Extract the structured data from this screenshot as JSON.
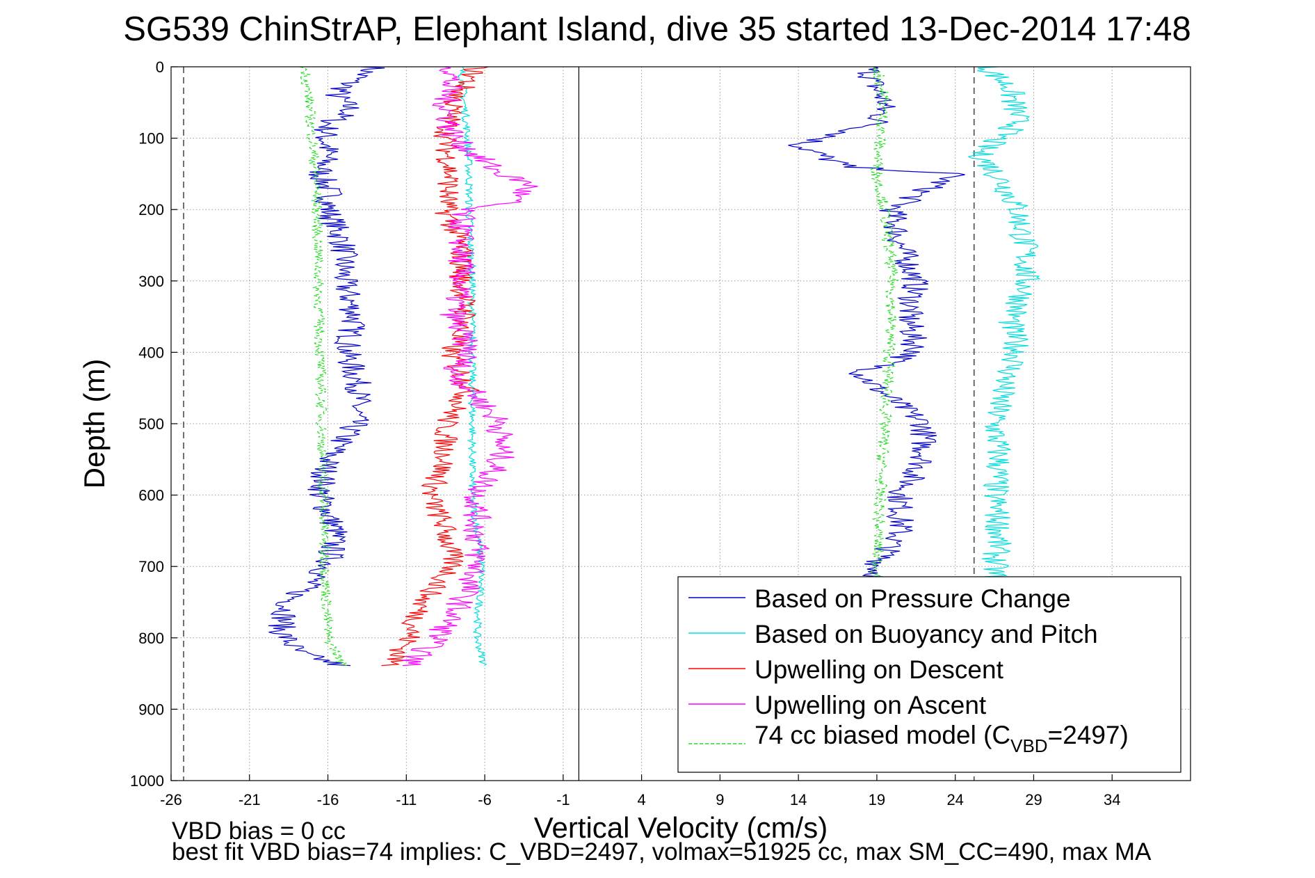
{
  "chart_data": {
    "type": "line",
    "title": "SG539 ChinStrAP, Elephant Island, dive 35 started 13-Dec-2014 17:48",
    "xlabel": "Vertical Velocity (cm/s)",
    "ylabel": "Depth (m)",
    "xlim": [
      -26,
      39
    ],
    "ylim": [
      0,
      1000
    ],
    "y_reversed": true,
    "grid": true,
    "x_ticks": [
      -26,
      -21,
      -16,
      -11,
      -6,
      -1,
      4,
      9,
      14,
      19,
      24,
      29,
      34
    ],
    "y_ticks": [
      0,
      100,
      200,
      300,
      400,
      500,
      600,
      700,
      800,
      900,
      1000
    ],
    "legend_position": "bottom-right",
    "reference_lines": {
      "zero_x": 0,
      "dashed_x": [
        -25.2,
        25.2
      ]
    },
    "series": [
      {
        "name": "Based on Pressure Change",
        "color": "#0000cc",
        "style": "solid",
        "depth": [
          0,
          20,
          40,
          60,
          80,
          100,
          120,
          150,
          180,
          200,
          250,
          300,
          350,
          400,
          450,
          500,
          550,
          600,
          650,
          700,
          750,
          790,
          820,
          840
        ],
        "velocity": [
          -13,
          -14.5,
          -15.5,
          -14.5,
          -16,
          -16.2,
          -16,
          -16.5,
          -15.8,
          -16,
          -15,
          -15,
          -14.3,
          -14.8,
          -14,
          -14.3,
          -16,
          -16.5,
          -15.5,
          -16,
          -18.5,
          -19,
          -18,
          -15
        ],
        "ascent_depth": [
          0,
          20,
          50,
          80,
          110,
          140,
          150,
          180,
          200,
          250,
          300,
          350,
          400,
          430,
          450,
          500,
          550,
          600,
          650,
          700,
          720
        ],
        "ascent_velocity": [
          18.5,
          18.7,
          19.5,
          19,
          14,
          17,
          24,
          21.5,
          20,
          20.5,
          21.5,
          21,
          21.5,
          18,
          19,
          22,
          22,
          20.5,
          20.5,
          19,
          19
        ]
      },
      {
        "name": "Based on Buoyancy and Pitch",
        "color": "#00dddd",
        "style": "solid",
        "depth": [
          0,
          50,
          100,
          150,
          200,
          300,
          400,
          500,
          600,
          700,
          800,
          840
        ],
        "velocity": [
          -7.5,
          -7.3,
          -7.1,
          -7,
          -7,
          -6.8,
          -6.8,
          -6.8,
          -6.8,
          -6.2,
          -6.5,
          -6
        ],
        "ascent_depth": [
          0,
          30,
          80,
          120,
          160,
          200,
          260,
          310,
          360,
          400,
          450,
          500,
          550,
          600,
          650,
          700,
          720
        ],
        "ascent_velocity": [
          26,
          27.5,
          28,
          25.5,
          27,
          28,
          28.5,
          28.5,
          27.5,
          28,
          27,
          26.5,
          26.8,
          26.5,
          26.8,
          26.5,
          26.5
        ]
      },
      {
        "name": "Upwelling on Descent",
        "color": "#ff0000",
        "style": "solid",
        "depth": [
          0,
          50,
          100,
          150,
          200,
          250,
          300,
          350,
          400,
          450,
          500,
          550,
          600,
          650,
          700,
          750,
          800,
          840
        ],
        "velocity": [
          -6.5,
          -8,
          -8.5,
          -8.2,
          -8.5,
          -7.5,
          -7.5,
          -7.2,
          -8.2,
          -7,
          -8.5,
          -8.5,
          -9.5,
          -8.5,
          -8,
          -10,
          -10.8,
          -12
        ]
      },
      {
        "name": "Upwelling on Ascent",
        "color": "#ff00ff",
        "style": "solid",
        "depth": [
          0,
          50,
          100,
          150,
          165,
          190,
          200,
          250,
          300,
          350,
          400,
          430,
          450,
          500,
          550,
          600,
          650,
          700,
          750,
          800,
          840
        ],
        "velocity": [
          -8,
          -8.5,
          -8,
          -5,
          -3,
          -4.5,
          -7.5,
          -7.5,
          -7.5,
          -8,
          -7,
          -8,
          -7,
          -5,
          -5,
          -6.5,
          -6.5,
          -6.5,
          -7.5,
          -9,
          -11
        ]
      },
      {
        "name": "74 cc biased model (C_VBD=2497)",
        "name_main": "74 cc biased model (C",
        "name_sub": "VBD",
        "name_tail": "=2497)",
        "color": "#22dd22",
        "style": "dashed",
        "depth": [
          0,
          50,
          100,
          150,
          200,
          300,
          400,
          500,
          600,
          700,
          800,
          840
        ],
        "velocity": [
          -17.5,
          -17.2,
          -17,
          -16.8,
          -16.7,
          -16.6,
          -16.5,
          -16.4,
          -16.3,
          -16.2,
          -16,
          -15
        ],
        "ascent_depth": [
          0,
          50,
          100,
          150,
          200,
          300,
          400,
          500,
          600,
          700,
          720
        ],
        "ascent_velocity": [
          19,
          19.5,
          19.2,
          19,
          19.5,
          20,
          19.8,
          19.5,
          19.2,
          19,
          19
        ]
      }
    ],
    "annotations": [
      "VBD bias = 0 cc",
      "best fit VBD bias=74 implies: C_VBD=2497, volmax=51925 cc, max SM_CC=490, max MA"
    ]
  }
}
